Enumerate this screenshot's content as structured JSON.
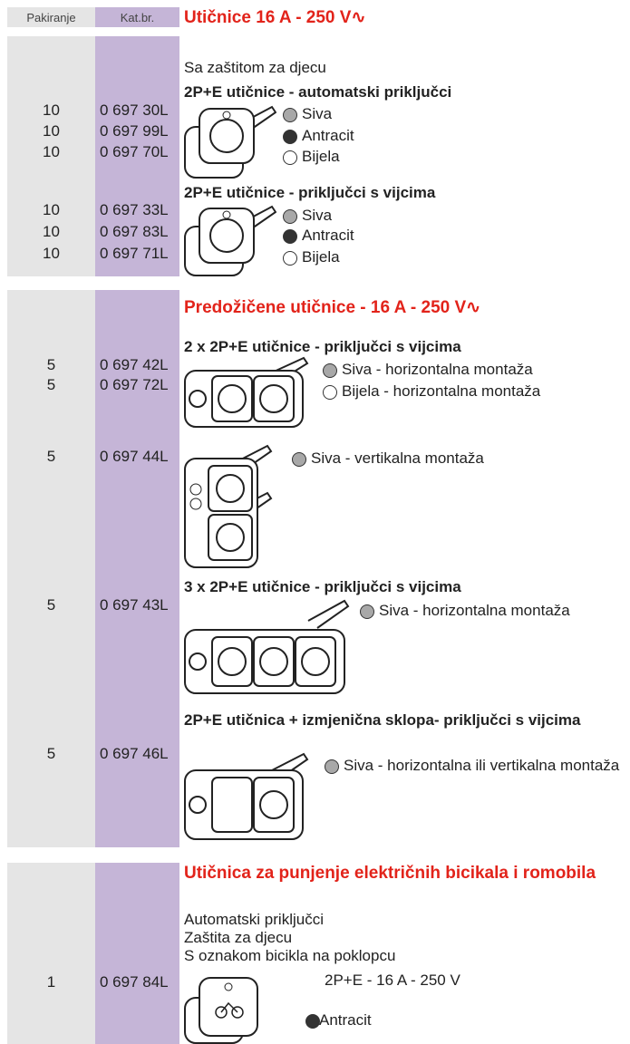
{
  "header": {
    "pack_label": "Pakiranje",
    "cat_label": "Kat.br."
  },
  "sections": [
    {
      "title": "Utičnice 16 A - 250 V∿",
      "note": "Sa zaštitom za djecu",
      "groups": [
        {
          "heading": "2P+E utičnice - automatski priključci",
          "items": [
            {
              "pack": "10",
              "cat": "0 697 30L",
              "color": "Siva"
            },
            {
              "pack": "10",
              "cat": "0 697 99L",
              "color": "Antracit"
            },
            {
              "pack": "10",
              "cat": "0 697 70L",
              "color": "Bijela"
            }
          ]
        },
        {
          "heading": "2P+E utičnice - priključci s vijcima",
          "items": [
            {
              "pack": "10",
              "cat": "0 697 33L",
              "color": "Siva"
            },
            {
              "pack": "10",
              "cat": "0 697 83L",
              "color": "Antracit"
            },
            {
              "pack": "10",
              "cat": "0 697 71L",
              "color": "Bijela"
            }
          ]
        }
      ]
    },
    {
      "title": "Predožičene utičnice - 16 A - 250 V∿",
      "groups": [
        {
          "heading": "2 x 2P+E utičnice - priključci s vijcima",
          "items": [
            {
              "pack": "5",
              "cat": "0 697 42L",
              "color": "Siva - horizontalna montaža"
            },
            {
              "pack": "5",
              "cat": "0 697 72L",
              "color": "Bijela - horizontalna montaža"
            },
            {
              "pack": "5",
              "cat": "0 697 44L",
              "color": "Siva - vertikalna montaža"
            }
          ]
        },
        {
          "heading": "3 x 2P+E utičnice - priključci s vijcima",
          "items": [
            {
              "pack": "5",
              "cat": "0 697 43L",
              "color": "Siva - horizontalna montaža"
            }
          ]
        },
        {
          "heading": "2P+E utičnica + izmjenična sklopa- priključci s vijcima",
          "items": [
            {
              "pack": "5",
              "cat": "0 697 46L",
              "color": "Siva - horizontalna ili vertikalna montaža"
            }
          ]
        }
      ]
    },
    {
      "title": "Utičnica za punjenje električnih bicikala i romobila",
      "notes": [
        "Automatski priključci",
        "Zaštita za djecu",
        "S oznakom bicikla na poklopcu"
      ],
      "groups": [
        {
          "items": [
            {
              "pack": "1",
              "cat": "0 697 84L",
              "spec": "2P+E - 16 A - 250 V",
              "color": "Antracit"
            }
          ]
        }
      ]
    }
  ]
}
